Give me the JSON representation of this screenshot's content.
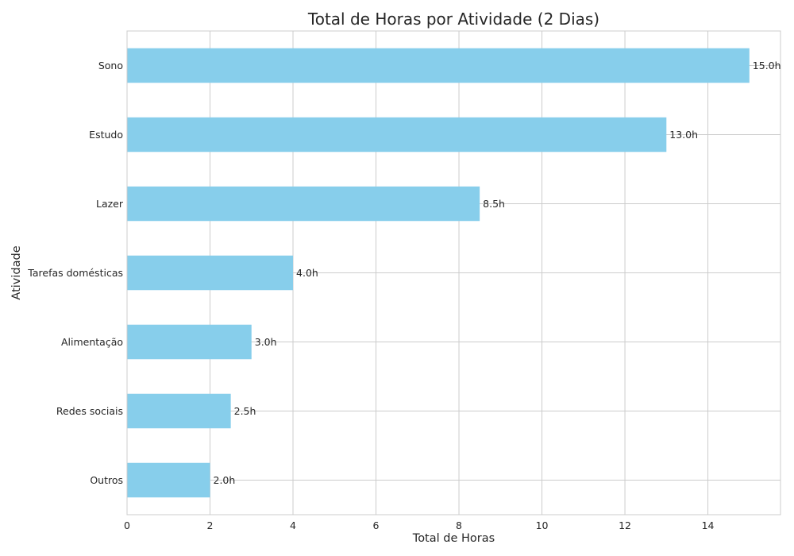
{
  "chart_data": {
    "type": "bar",
    "orientation": "horizontal",
    "title": "Total de Horas por Atividade (2 Dias)",
    "xlabel": "Total de Horas",
    "ylabel": "Atividade",
    "categories": [
      "Sono",
      "Estudo",
      "Lazer",
      "Tarefas domésticas",
      "Alimentação",
      "Redes sociais",
      "Outros"
    ],
    "values": [
      15.0,
      13.0,
      8.5,
      4.0,
      3.0,
      2.5,
      2.0
    ],
    "data_labels": [
      "15.0h",
      "13.0h",
      "8.5h",
      "4.0h",
      "3.0h",
      "2.5h",
      "2.0h"
    ],
    "xlim": [
      0,
      15.75
    ],
    "xticks": [
      0,
      2,
      4,
      6,
      8,
      10,
      12,
      14
    ],
    "xtick_labels": [
      "0",
      "2",
      "4",
      "6",
      "8",
      "10",
      "12",
      "14"
    ],
    "grid": true,
    "legend": "none",
    "colors": {
      "bar": "#87ceeb",
      "grid": "#cccccc",
      "axes": "#cccccc",
      "text": "#262626"
    }
  }
}
